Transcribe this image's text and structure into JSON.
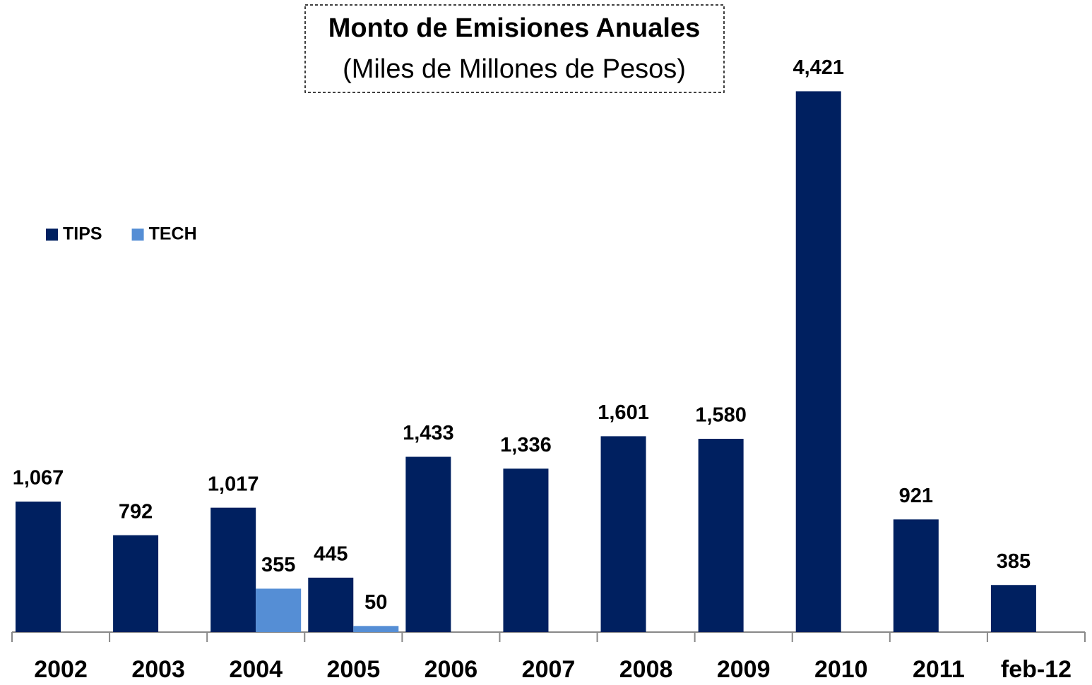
{
  "chart_data": {
    "type": "bar",
    "title": "Monto de Emisiones Anuales",
    "subtitle": "(Miles de Millones de Pesos)",
    "categories": [
      "2002",
      "2003",
      "2004",
      "2005",
      "2006",
      "2007",
      "2008",
      "2009",
      "2010",
      "2011",
      "feb-12"
    ],
    "series": [
      {
        "name": "TIPS",
        "color": "#002060",
        "values": [
          1067,
          792,
          1017,
          445,
          1433,
          1336,
          1601,
          1580,
          4421,
          921,
          385
        ],
        "value_labels": [
          "1,067",
          "792",
          "1,017",
          "445",
          "1,433",
          "1,336",
          "1,601",
          "1,580",
          "4,421",
          "921",
          "385"
        ]
      },
      {
        "name": "TECH",
        "color": "#558ed5",
        "values": [
          null,
          null,
          355,
          50,
          null,
          null,
          null,
          null,
          null,
          null,
          null
        ],
        "value_labels": [
          null,
          null,
          "355",
          "50",
          null,
          null,
          null,
          null,
          null,
          null,
          null
        ]
      }
    ],
    "ylim": [
      0,
      5000
    ],
    "legend": "left"
  }
}
